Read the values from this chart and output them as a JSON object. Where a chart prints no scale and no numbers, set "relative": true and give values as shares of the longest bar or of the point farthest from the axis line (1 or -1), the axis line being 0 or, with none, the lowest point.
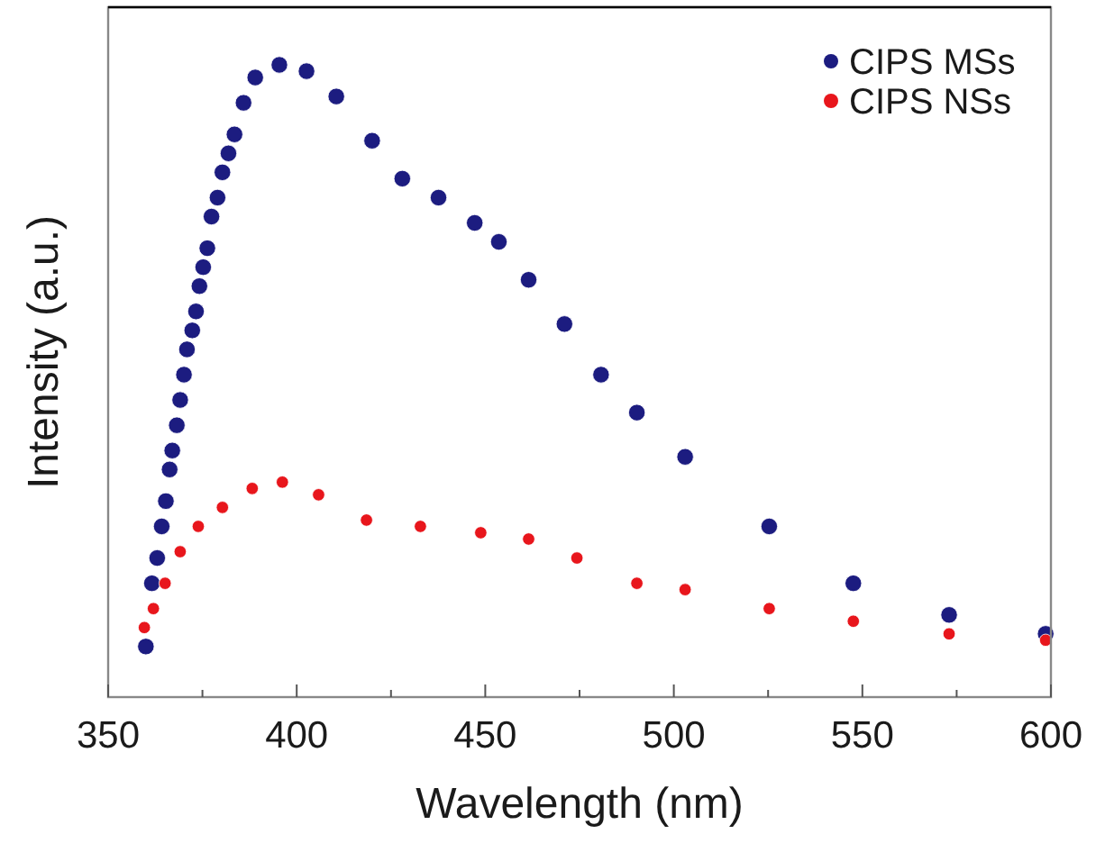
{
  "chart_data": {
    "type": "scatter",
    "xlabel": "Wavelength (nm)",
    "ylabel": "Intensity (a.u.)",
    "relative": true,
    "xlim": [
      350,
      600
    ],
    "xticks": [
      350,
      {
        "value": 375,
        "label": null
      },
      400,
      {
        "value": 425,
        "label": null
      },
      450,
      {
        "value": 475,
        "label": null
      },
      500,
      {
        "value": 525,
        "label": null
      },
      550,
      {
        "value": 575,
        "label": null
      },
      600
    ],
    "legend": "top right",
    "marker": "circle",
    "grid": false,
    "series": [
      {
        "name": "CIPS MSs",
        "color": "#1c1c80",
        "x": [
          360,
          361.6,
          363,
          364.2,
          365.3,
          366.3,
          367,
          368.2,
          369.1,
          370.1,
          370.9,
          372.3,
          373.3,
          374.2,
          375.2,
          376.3,
          377.4,
          379,
          380.3,
          381.9,
          383.5,
          385.9,
          389,
          395.4,
          402.6,
          410.5,
          420,
          428,
          437.6,
          447.2,
          453.6,
          461.5,
          471,
          480.7,
          490.2,
          503,
          525.3,
          547.6,
          573,
          598.6
        ],
        "values": [
          0.08,
          0.18,
          0.22,
          0.27,
          0.31,
          0.36,
          0.39,
          0.43,
          0.47,
          0.51,
          0.55,
          0.58,
          0.61,
          0.65,
          0.68,
          0.71,
          0.76,
          0.79,
          0.83,
          0.86,
          0.89,
          0.94,
          0.98,
          1,
          0.99,
          0.95,
          0.88,
          0.82,
          0.79,
          0.75,
          0.72,
          0.66,
          0.59,
          0.51,
          0.45,
          0.38,
          0.27,
          0.18,
          0.13,
          0.1
        ]
      },
      {
        "name": "CIPS NSs",
        "color": "#e8161c",
        "x": [
          359.6,
          362,
          365.1,
          369.1,
          373.9,
          380.3,
          388.2,
          396.2,
          405.8,
          418.5,
          432.8,
          448.8,
          461.5,
          474.3,
          490.2,
          503,
          525.3,
          547.6,
          573,
          598.6
        ],
        "values": [
          0.11,
          0.14,
          0.18,
          0.23,
          0.27,
          0.3,
          0.33,
          0.34,
          0.32,
          0.28,
          0.27,
          0.26,
          0.25,
          0.22,
          0.18,
          0.17,
          0.14,
          0.12,
          0.1,
          0.09
        ]
      }
    ]
  }
}
